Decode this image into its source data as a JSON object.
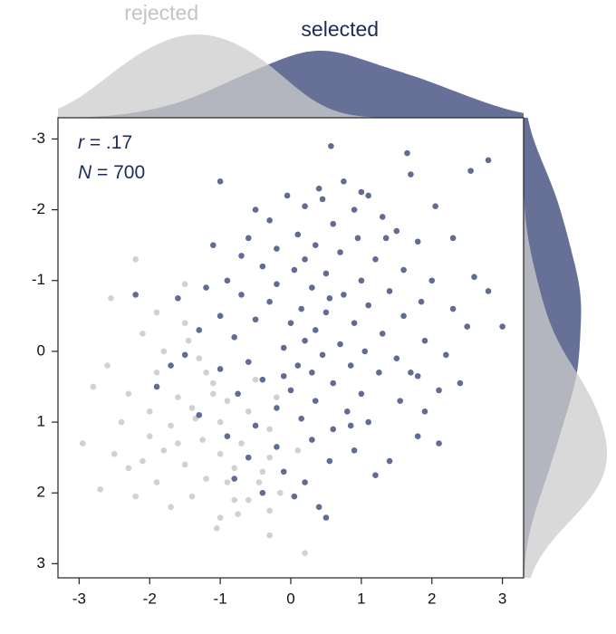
{
  "chart_data": {
    "type": "scatter",
    "annotations": [
      "r = .17",
      "N = 700"
    ],
    "xlim": [
      -3.3,
      3.3
    ],
    "ylim": [
      -3.3,
      3.2
    ],
    "y_inverted": true,
    "xticks": [
      -3,
      -2,
      -1,
      0,
      1,
      2,
      3
    ],
    "yticks": [
      -3,
      -2,
      -1,
      0,
      1,
      2,
      3
    ],
    "marginal_density": true,
    "series": [
      {
        "name": "selected",
        "color": "#2c3a70",
        "x": [
          0.57,
          1.65,
          2.8,
          2.55,
          1.7,
          -1.0,
          0.75,
          0.4,
          1.0,
          -0.05,
          0.45,
          1.1,
          0.2,
          -0.5,
          0.9,
          2.05,
          1.3,
          -0.3,
          0.6,
          1.5,
          -0.6,
          0.1,
          0.95,
          2.3,
          -1.1,
          -0.2,
          0.35,
          1.8,
          0.7,
          -0.7,
          1.2,
          2.6,
          -0.4,
          0.05,
          0.5,
          1.6,
          -0.9,
          1.0,
          2.0,
          -0.2,
          0.3,
          1.4,
          2.8,
          -1.6,
          -0.7,
          0.75,
          1.85,
          -0.3,
          0.15,
          1.1,
          2.3,
          -1.0,
          0.5,
          1.6,
          -0.5,
          0.0,
          0.9,
          2.5,
          -1.3,
          0.35,
          1.3,
          3.0,
          -0.8,
          0.2,
          0.7,
          1.9,
          -0.1,
          1.05,
          -1.5,
          0.45,
          1.5,
          2.2,
          -0.6,
          0.1,
          0.85,
          -1.0,
          0.3,
          1.25,
          1.8,
          -0.4,
          0.6,
          -1.9,
          0.0,
          1.0,
          2.1,
          -0.75,
          0.35,
          1.55,
          -0.2,
          0.8,
          1.9,
          -1.3,
          0.15,
          1.1,
          -0.5,
          0.6,
          -0.9,
          0.3,
          1.8,
          2.1,
          -0.2,
          0.9,
          -0.6,
          0.55,
          1.4,
          -0.1,
          1.2,
          0.2,
          -0.4,
          0.4,
          0.5,
          -0.8,
          0.05,
          -2.2,
          -1.7,
          -1.2,
          1.7,
          2.4,
          0.2,
          -0.1,
          0.55,
          1.35,
          0.85
        ],
        "values": [
          -2.9,
          -2.8,
          -2.7,
          -2.55,
          -2.5,
          -2.4,
          -2.4,
          -2.3,
          -2.25,
          -2.2,
          -2.15,
          -2.2,
          -2.05,
          -2.0,
          -2.0,
          -2.05,
          -1.9,
          -1.85,
          -1.8,
          -1.7,
          -1.6,
          -1.65,
          -1.6,
          -1.6,
          -1.5,
          -1.45,
          -1.5,
          -1.55,
          -1.4,
          -1.35,
          -1.3,
          -1.05,
          -1.2,
          -1.15,
          -1.1,
          -1.15,
          -1.0,
          -1.0,
          -1.0,
          -0.95,
          -0.9,
          -0.85,
          -0.85,
          -0.75,
          -0.8,
          -0.8,
          -0.7,
          -0.7,
          -0.6,
          -0.65,
          -0.6,
          -0.5,
          -0.55,
          -0.5,
          -0.45,
          -0.4,
          -0.4,
          -0.35,
          -0.3,
          -0.3,
          -0.25,
          -0.35,
          -0.2,
          -0.15,
          -0.1,
          -0.15,
          -0.05,
          0.0,
          0.05,
          0.05,
          0.1,
          0.05,
          0.15,
          0.2,
          0.2,
          0.25,
          0.3,
          0.3,
          0.35,
          0.4,
          0.45,
          0.5,
          0.55,
          0.6,
          0.55,
          0.6,
          0.7,
          0.7,
          0.8,
          0.85,
          0.85,
          0.9,
          0.95,
          1.0,
          1.05,
          1.1,
          1.2,
          1.25,
          1.2,
          1.3,
          1.35,
          1.4,
          1.5,
          1.55,
          1.55,
          1.7,
          1.75,
          1.85,
          2.0,
          2.2,
          2.35,
          1.8,
          2.05,
          -0.8,
          0.2,
          -0.9,
          0.3,
          0.45,
          -1.3,
          0.35,
          -0.75,
          -1.6,
          1.05
        ]
      },
      {
        "name": "rejected",
        "color": "#cccccc",
        "x": [
          -2.2,
          -2.55,
          -1.5,
          -1.5,
          -2.1,
          -1.3,
          -2.6,
          -1.9,
          -2.8,
          -1.1,
          -2.3,
          -1.6,
          -0.9,
          -2.0,
          -1.4,
          -0.6,
          -2.4,
          -1.7,
          -1.0,
          -0.3,
          -2.0,
          -1.25,
          -0.7,
          -2.95,
          -1.8,
          -1.0,
          -0.3,
          -1.5,
          -0.8,
          -2.3,
          -1.2,
          -0.45,
          -1.9,
          -2.7,
          -1.4,
          -2.2,
          -0.8,
          -1.7,
          -1.0,
          -0.3,
          -1.05,
          -0.75,
          -0.3,
          0.2,
          -1.2,
          -0.5,
          -1.8,
          -0.2,
          -0.4,
          0.1,
          -1.6,
          -2.5,
          -0.9,
          -1.35,
          -0.6,
          -2.1,
          -1.1,
          -0.15,
          -1.9,
          -1.45
        ],
        "values": [
          -1.3,
          -0.75,
          -0.95,
          -0.4,
          -0.25,
          0.1,
          0.2,
          0.3,
          0.5,
          0.45,
          0.6,
          0.65,
          0.7,
          0.85,
          0.8,
          0.85,
          1.0,
          1.05,
          1.0,
          1.1,
          1.2,
          1.25,
          1.3,
          1.3,
          1.4,
          1.45,
          1.5,
          1.6,
          1.65,
          1.65,
          1.8,
          1.85,
          1.85,
          1.95,
          2.05,
          2.05,
          2.1,
          2.2,
          2.35,
          2.25,
          2.5,
          2.3,
          2.6,
          2.85,
          0.3,
          0.4,
          0.0,
          0.65,
          1.7,
          1.4,
          1.3,
          1.45,
          1.85,
          0.95,
          2.1,
          1.55,
          0.6,
          2.0,
          -0.55,
          -0.15
        ]
      }
    ]
  }
}
